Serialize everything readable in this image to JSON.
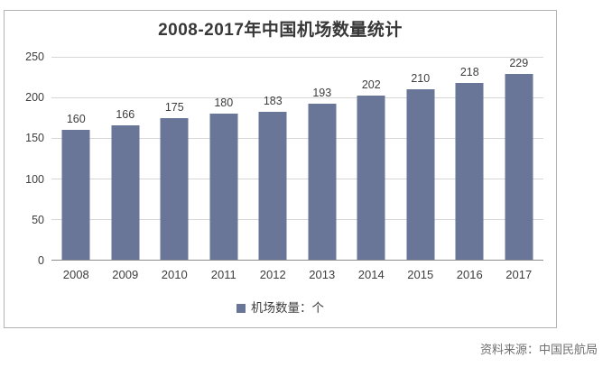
{
  "chart_data": {
    "type": "bar",
    "title": "2008-2017年中国机场数量统计",
    "categories": [
      "2008",
      "2009",
      "2010",
      "2011",
      "2012",
      "2013",
      "2014",
      "2015",
      "2016",
      "2017"
    ],
    "values": [
      160,
      166,
      175,
      180,
      183,
      193,
      202,
      210,
      218,
      229
    ],
    "series_name": "机场数量：个",
    "xlabel": "",
    "ylabel": "",
    "ylim": [
      0,
      250
    ],
    "yticks": [
      0,
      50,
      100,
      150,
      200,
      250
    ],
    "grid": true,
    "legend_position": "bottom",
    "bar_color": "#697698",
    "gridline_color": "#d6d6d6",
    "axis_line_color": "#8c8c8c",
    "label_color": "#3d3d3d",
    "title_color": "#383838",
    "border_color": "#b3b3b3"
  },
  "source_note": "资料来源：中国民航局"
}
